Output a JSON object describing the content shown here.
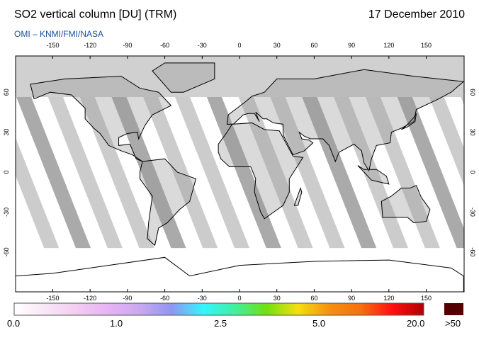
{
  "header": {
    "title": "SO2 vertical column [DU] (TRM)",
    "date": "17 December 2010",
    "credit": "OMI  –  KNMI/FMI/NASA"
  },
  "map": {
    "lon_ticks": [
      "-150",
      "-120",
      "-90",
      "-60",
      "-30",
      "0",
      "30",
      "60",
      "90",
      "120",
      "150"
    ],
    "lat_ticks": [
      "60",
      "30",
      "0",
      "-30",
      "-60"
    ],
    "land_color": "#999999",
    "swath_color": "#cccccc",
    "polar_color": "#d0d0d0"
  },
  "colorbar": {
    "labels": [
      "0.0",
      "1.0",
      "2.5",
      "5.0",
      "20.0"
    ],
    "overflow_label": ">50",
    "overflow_color": "#550000",
    "colors": [
      "#ffffff",
      "#f9e6f6",
      "#f1cdf0",
      "#e6b3f5",
      "#c9a8f0",
      "#8f96f0",
      "#35f5ff",
      "#40f0a0",
      "#70e010",
      "#f5df10",
      "#f59010",
      "#f57010",
      "#ff1010",
      "#b00000"
    ]
  }
}
